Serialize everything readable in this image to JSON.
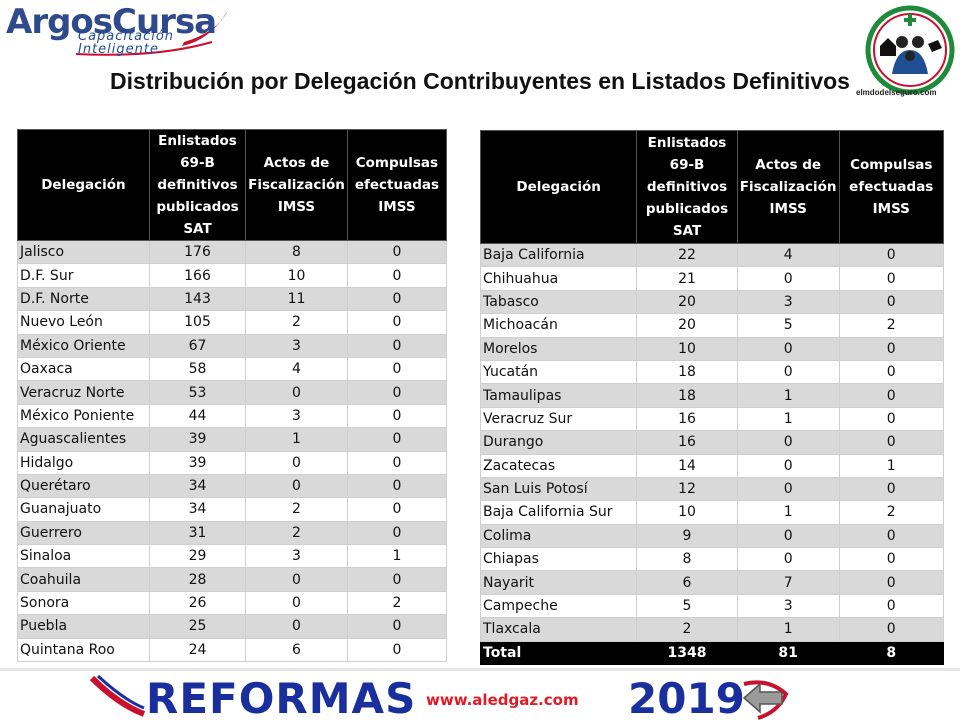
{
  "logo": {
    "name_part1": "Argos",
    "name_part2": "Cursa",
    "tagline1": "Capacitación",
    "tagline2": "Inteligente"
  },
  "corner_logo": {
    "caption": "elmdodelseguro.com"
  },
  "title": "Distribución por Delegación Contribuyentes en Listados Definitivos",
  "headers": {
    "col1": "Delegación",
    "col2": "Enlistados 69-B definitivos publicados SAT",
    "col3": "Actos de Fiscalización IMSS",
    "col4": "Compulsas efectuadas IMSS"
  },
  "left_rows": [
    [
      "Jalisco",
      "176",
      "8",
      "0"
    ],
    [
      "D.F. Sur",
      "166",
      "10",
      "0"
    ],
    [
      "D.F. Norte",
      "143",
      "11",
      "0"
    ],
    [
      "Nuevo León",
      "105",
      "2",
      "0"
    ],
    [
      "México Oriente",
      "67",
      "3",
      "0"
    ],
    [
      "Oaxaca",
      "58",
      "4",
      "0"
    ],
    [
      "Veracruz Norte",
      "53",
      "0",
      "0"
    ],
    [
      "México Poniente",
      "44",
      "3",
      "0"
    ],
    [
      "Aguascalientes",
      "39",
      "1",
      "0"
    ],
    [
      "Hidalgo",
      "39",
      "0",
      "0"
    ],
    [
      "Querétaro",
      "34",
      "0",
      "0"
    ],
    [
      "Guanajuato",
      "34",
      "2",
      "0"
    ],
    [
      "Guerrero",
      "31",
      "2",
      "0"
    ],
    [
      "Sinaloa",
      "29",
      "3",
      "1"
    ],
    [
      "Coahuila",
      "28",
      "0",
      "0"
    ],
    [
      "Sonora",
      "26",
      "0",
      "2"
    ],
    [
      "Puebla",
      "25",
      "0",
      "0"
    ],
    [
      "Quintana Roo",
      "24",
      "6",
      "0"
    ]
  ],
  "right_rows": [
    [
      "Baja California",
      "22",
      "4",
      "0"
    ],
    [
      "Chihuahua",
      "21",
      "0",
      "0"
    ],
    [
      "Tabasco",
      "20",
      "3",
      "0"
    ],
    [
      "Michoacán",
      "20",
      "5",
      "2"
    ],
    [
      "Morelos",
      "10",
      "0",
      "0"
    ],
    [
      "Yucatán",
      "18",
      "0",
      "0"
    ],
    [
      "Tamaulipas",
      "18",
      "1",
      "0"
    ],
    [
      "Veracruz Sur",
      "16",
      "1",
      "0"
    ],
    [
      "Durango",
      "16",
      "0",
      "0"
    ],
    [
      "Zacatecas",
      "14",
      "0",
      "1"
    ],
    [
      "San Luis Potosí",
      "12",
      "0",
      "0"
    ],
    [
      "Baja California Sur",
      "10",
      "1",
      "2"
    ],
    [
      "Colima",
      "9",
      "0",
      "0"
    ],
    [
      "Chiapas",
      "8",
      "0",
      "0"
    ],
    [
      "Nayarit",
      "6",
      "7",
      "0"
    ],
    [
      "Campeche",
      "5",
      "3",
      "0"
    ],
    [
      "Tlaxcala",
      "2",
      "1",
      "0"
    ]
  ],
  "total_row": [
    "Total",
    "1348",
    "81",
    "8"
  ],
  "footer": {
    "reformas": "REFORMAS",
    "url": "www.aledgaz.com",
    "year": "2019"
  },
  "colors": {
    "header_bg": "#000000",
    "row_alt": "#d9d9d9",
    "brand_blue": "#1a2f9e",
    "url_red": "#e01b24"
  }
}
